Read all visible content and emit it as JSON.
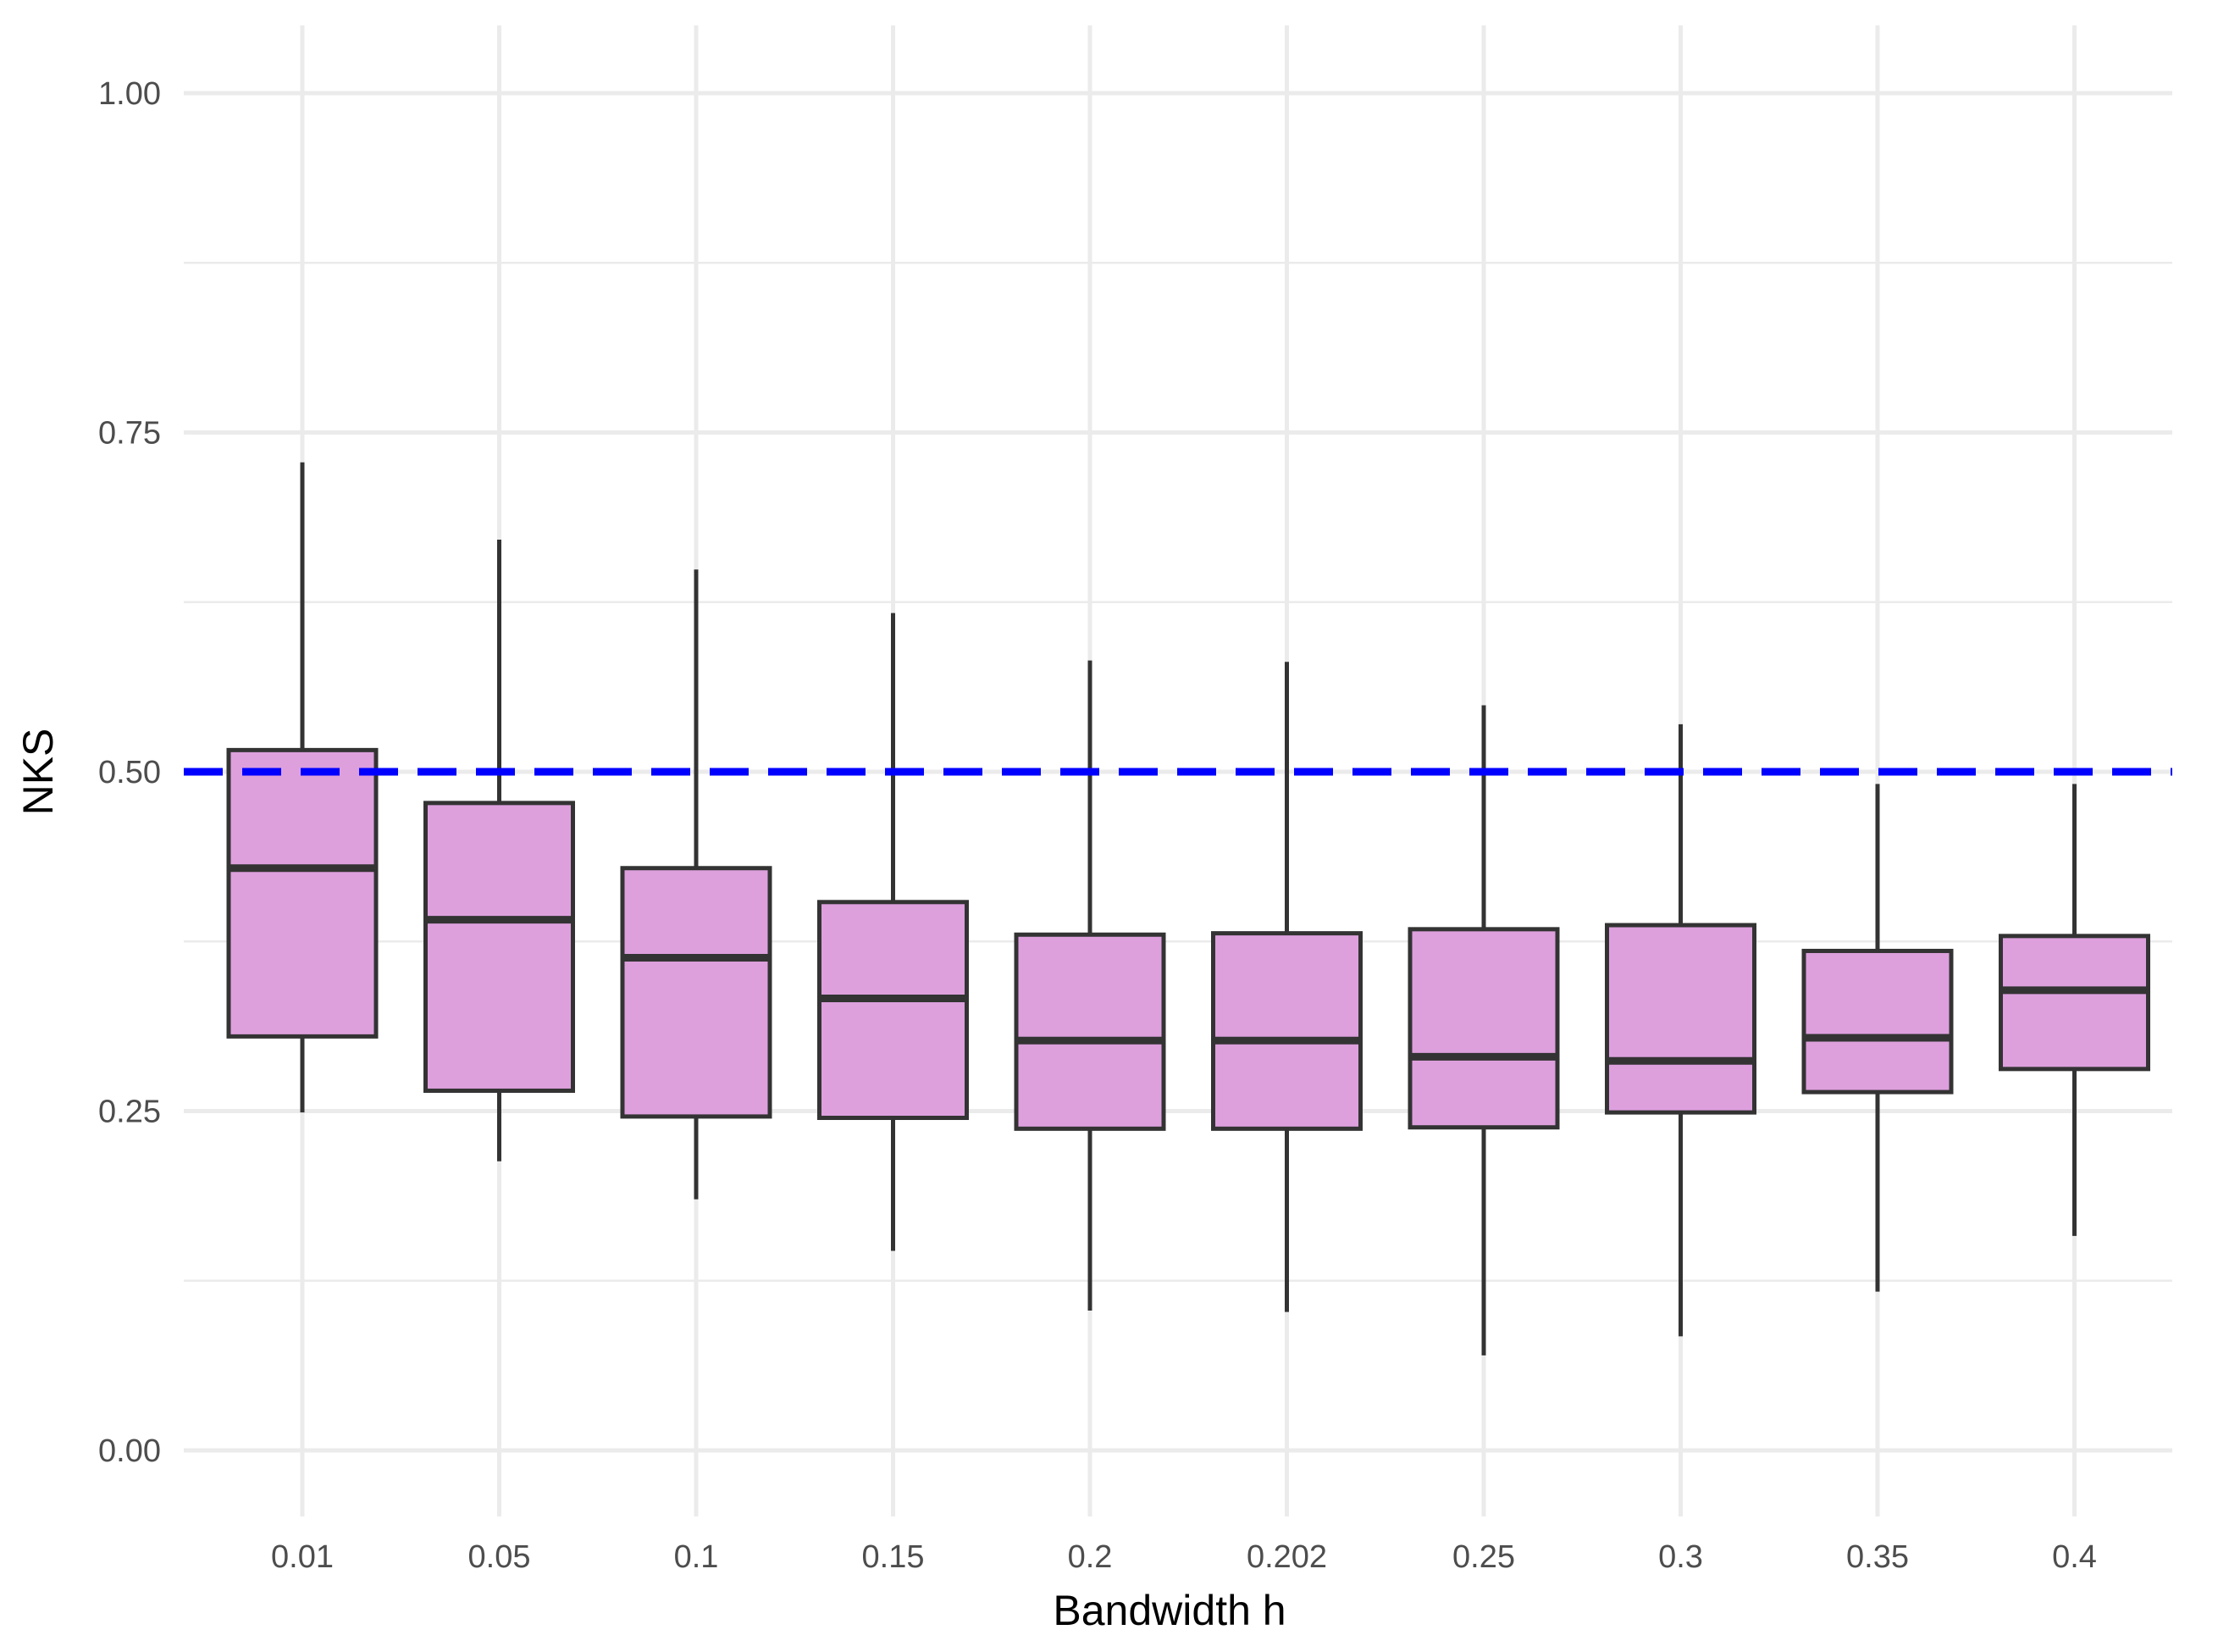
{
  "chart_data": {
    "type": "boxplot",
    "xlabel": "Bandwidth h",
    "ylabel": "NKS",
    "ylim": [
      -0.05,
      1.05
    ],
    "yticks": [
      0.0,
      0.25,
      0.5,
      0.75,
      1.0
    ],
    "ytick_labels": [
      "0.00",
      "0.25",
      "0.50",
      "0.75",
      "1.00"
    ],
    "categories": [
      "0.01",
      "0.05",
      "0.1",
      "0.15",
      "0.2",
      "0.202",
      "0.25",
      "0.3",
      "0.35",
      "0.4"
    ],
    "boxes": [
      {
        "category": "0.01",
        "whisker_low": 0.249,
        "q1": 0.305,
        "median": 0.429,
        "q3": 0.516,
        "whisker_high": 0.728
      },
      {
        "category": "0.05",
        "whisker_low": 0.213,
        "q1": 0.265,
        "median": 0.391,
        "q3": 0.477,
        "whisker_high": 0.671
      },
      {
        "category": "0.1",
        "whisker_low": 0.185,
        "q1": 0.246,
        "median": 0.363,
        "q3": 0.429,
        "whisker_high": 0.649
      },
      {
        "category": "0.15",
        "whisker_low": 0.147,
        "q1": 0.245,
        "median": 0.333,
        "q3": 0.404,
        "whisker_high": 0.617
      },
      {
        "category": "0.2",
        "whisker_low": 0.103,
        "q1": 0.237,
        "median": 0.302,
        "q3": 0.38,
        "whisker_high": 0.582
      },
      {
        "category": "0.202",
        "whisker_low": 0.102,
        "q1": 0.237,
        "median": 0.302,
        "q3": 0.381,
        "whisker_high": 0.581
      },
      {
        "category": "0.25",
        "whisker_low": 0.07,
        "q1": 0.238,
        "median": 0.29,
        "q3": 0.384,
        "whisker_high": 0.549
      },
      {
        "category": "0.3",
        "whisker_low": 0.084,
        "q1": 0.249,
        "median": 0.287,
        "q3": 0.387,
        "whisker_high": 0.535
      },
      {
        "category": "0.35",
        "whisker_low": 0.117,
        "q1": 0.264,
        "median": 0.304,
        "q3": 0.368,
        "whisker_high": 0.491
      },
      {
        "category": "0.4",
        "whisker_low": 0.158,
        "q1": 0.281,
        "median": 0.339,
        "q3": 0.379,
        "whisker_high": 0.491
      }
    ],
    "reference_line": {
      "y": 0.5,
      "style": "dashed",
      "color": "#0000ff"
    },
    "box_fill": "#dda0dd",
    "box_stroke": "#333333",
    "grid": true
  }
}
